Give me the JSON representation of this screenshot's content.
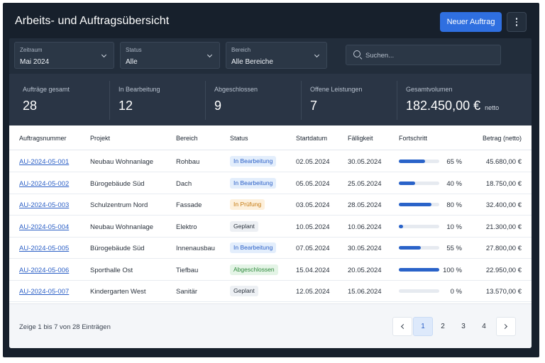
{
  "header": {
    "title": "Arbeits- und Auftragsübersicht",
    "new_order_label": "Neuer Auftrag"
  },
  "filters": {
    "period": {
      "label": "Zeitraum",
      "value": "Mai 2024"
    },
    "status": {
      "label": "Status",
      "value": "Alle"
    },
    "area": {
      "label": "Bereich",
      "value": "Alle Bereiche"
    },
    "search_placeholder": "Suchen..."
  },
  "stats": [
    {
      "label": "Aufträge gesamt",
      "value": "28",
      "suffix": ""
    },
    {
      "label": "In Bearbeitung",
      "value": "12",
      "suffix": ""
    },
    {
      "label": "Abgeschlossen",
      "value": "9",
      "suffix": ""
    },
    {
      "label": "Offene Leistungen",
      "value": "7",
      "suffix": ""
    },
    {
      "label": "Gesamtvolumen",
      "value": "182.450,00 €",
      "suffix": "netto"
    }
  ],
  "table": {
    "columns": [
      "Auftragsnummer",
      "Projekt",
      "Bereich",
      "Status",
      "Startdatum",
      "Fälligkeit",
      "Fortschritt",
      "Betrag (netto)"
    ],
    "rows": [
      {
        "id": "AU-2024-05-001",
        "project": "Neubau Wohnanlage",
        "area": "Rohbau",
        "status": "In Bearbeitung",
        "status_kind": "blue",
        "start": "02.05.2024",
        "due": "30.05.2024",
        "progress": 65,
        "progress_label": "65 %",
        "amount": "45.680,00 €"
      },
      {
        "id": "AU-2024-05-002",
        "project": "Bürogebäude Süd",
        "area": "Dach",
        "status": "In Bearbeitung",
        "status_kind": "blue",
        "start": "05.05.2024",
        "due": "25.05.2024",
        "progress": 40,
        "progress_label": "40 %",
        "amount": "18.750,00 €"
      },
      {
        "id": "AU-2024-05-003",
        "project": "Schulzentrum Nord",
        "area": "Fassade",
        "status": "In Prüfung",
        "status_kind": "orange",
        "start": "03.05.2024",
        "due": "28.05.2024",
        "progress": 80,
        "progress_label": "80 %",
        "amount": "32.400,00 €"
      },
      {
        "id": "AU-2024-05-004",
        "project": "Neubau Wohnanlage",
        "area": "Elektro",
        "status": "Geplant",
        "status_kind": "gray",
        "start": "10.05.2024",
        "due": "10.06.2024",
        "progress": 10,
        "progress_label": "10 %",
        "amount": "21.300,00 €"
      },
      {
        "id": "AU-2024-05-005",
        "project": "Bürogebäude Süd",
        "area": "Innenausbau",
        "status": "In Bearbeitung",
        "status_kind": "blue",
        "start": "07.05.2024",
        "due": "30.05.2024",
        "progress": 55,
        "progress_label": "55 %",
        "amount": "27.800,00 €"
      },
      {
        "id": "AU-2024-05-006",
        "project": "Sporthalle Ost",
        "area": "Tiefbau",
        "status": "Abgeschlossen",
        "status_kind": "green",
        "start": "15.04.2024",
        "due": "20.05.2024",
        "progress": 100,
        "progress_label": "100 %",
        "amount": "22.950,00 €"
      },
      {
        "id": "AU-2024-05-007",
        "project": "Kindergarten West",
        "area": "Sanitär",
        "status": "Geplant",
        "status_kind": "gray",
        "start": "12.05.2024",
        "due": "15.06.2024",
        "progress": 0,
        "progress_label": "0 %",
        "amount": "13.570,00 €"
      }
    ]
  },
  "footer": {
    "summary": "Zeige 1 bis 7 von 28 Einträgen",
    "pages": [
      "1",
      "2",
      "3",
      "4"
    ],
    "active_page": "1"
  },
  "colors": {
    "accent": "#2f6fe0",
    "badge_blue_bg": "#e3eefc",
    "badge_blue_fg": "#2a5fc6",
    "badge_orange_bg": "#fdf0dc",
    "badge_orange_fg": "#c47a12",
    "badge_gray_bg": "#edf0f4",
    "badge_gray_fg": "#2a323d",
    "badge_green_bg": "#e4f4e6",
    "badge_green_fg": "#2f8a3c"
  },
  "icons": {
    "more": "vertical-dots-icon",
    "search": "search-icon",
    "prev": "chevron-left-icon",
    "next": "chevron-right-icon"
  }
}
